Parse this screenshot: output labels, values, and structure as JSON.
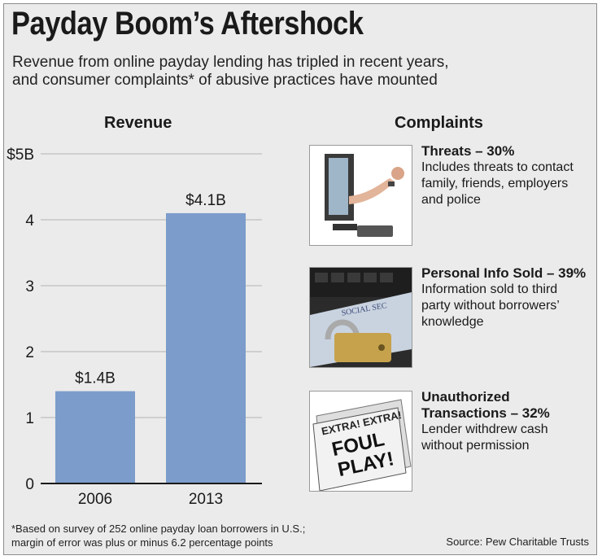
{
  "header": {
    "title": "Payday Boom’s Aftershock",
    "subtitle_line1": "Revenue from online payday lending has tripled in recent years,",
    "subtitle_line2": "and consumer complaints* of abusive practices have mounted"
  },
  "chart_data": {
    "type": "bar",
    "title": "Revenue",
    "categories": [
      "2006",
      "2013"
    ],
    "values": [
      1.4,
      4.1
    ],
    "value_labels": [
      "$1.4B",
      "$4.1B"
    ],
    "ytick_values": [
      0,
      1,
      2,
      3,
      4,
      5
    ],
    "ytick_labels": [
      "0",
      "1",
      "2",
      "3",
      "4",
      "$5B"
    ],
    "ylim": [
      0,
      5
    ],
    "xlabel": "",
    "ylabel": "",
    "grid": true,
    "bar_color": "#7c9ccb"
  },
  "complaints": {
    "heading": "Complaints",
    "items": [
      {
        "title": "Threats – 30%",
        "description": "Includes threats to contact\nfamily, friends, employers\nand police",
        "icon": "monitor-arm-icon"
      },
      {
        "title": "Personal Info Sold – 39%",
        "description": "Information sold to third\nparty without borrowers’\nknowledge",
        "icon": "padlock-ssn-card-icon",
        "image_text": "SOCIAL SEC"
      },
      {
        "title": "Unauthorized\nTransactions – 32%",
        "description": "Lender withdrew cash\nwithout permission",
        "icon": "newspaper-icon",
        "image_text_1": "EXTRA! EXTRA!",
        "image_text_2": "FOUL",
        "image_text_3": "PLAY!"
      }
    ]
  },
  "footer": {
    "footnote_line1": "*Based on survey of 252 online payday loan borrowers in U.S.;",
    "footnote_line2": "margin of error was plus or minus 6.2 percentage points",
    "source": "Source: Pew Charitable Trusts"
  }
}
